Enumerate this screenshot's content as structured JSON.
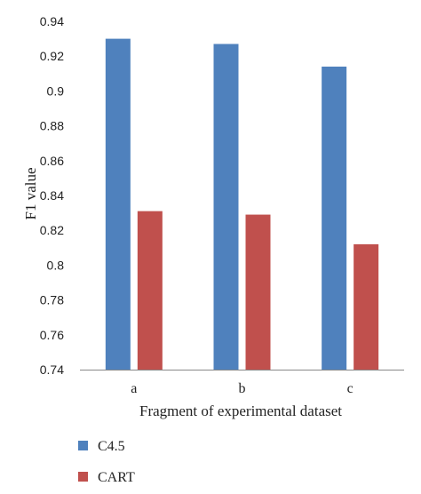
{
  "chart_data": {
    "type": "bar",
    "categories": [
      "a",
      "b",
      "c"
    ],
    "series": [
      {
        "name": "C4.5",
        "values": [
          0.93,
          0.927,
          0.914
        ],
        "color": "#4f81bd"
      },
      {
        "name": "CART",
        "values": [
          0.831,
          0.829,
          0.812
        ],
        "color": "#c0504d"
      }
    ],
    "xlabel": "Fragment of experimental dataset",
    "ylabel": "F1 value",
    "ylim": [
      0.74,
      0.94
    ],
    "yticks": [
      "0.74",
      "0.76",
      "0.78",
      "0.8",
      "0.82",
      "0.84",
      "0.86",
      "0.88",
      "0.9",
      "0.92",
      "0.94"
    ],
    "grid": false,
    "legend_position": "bottom-left"
  }
}
